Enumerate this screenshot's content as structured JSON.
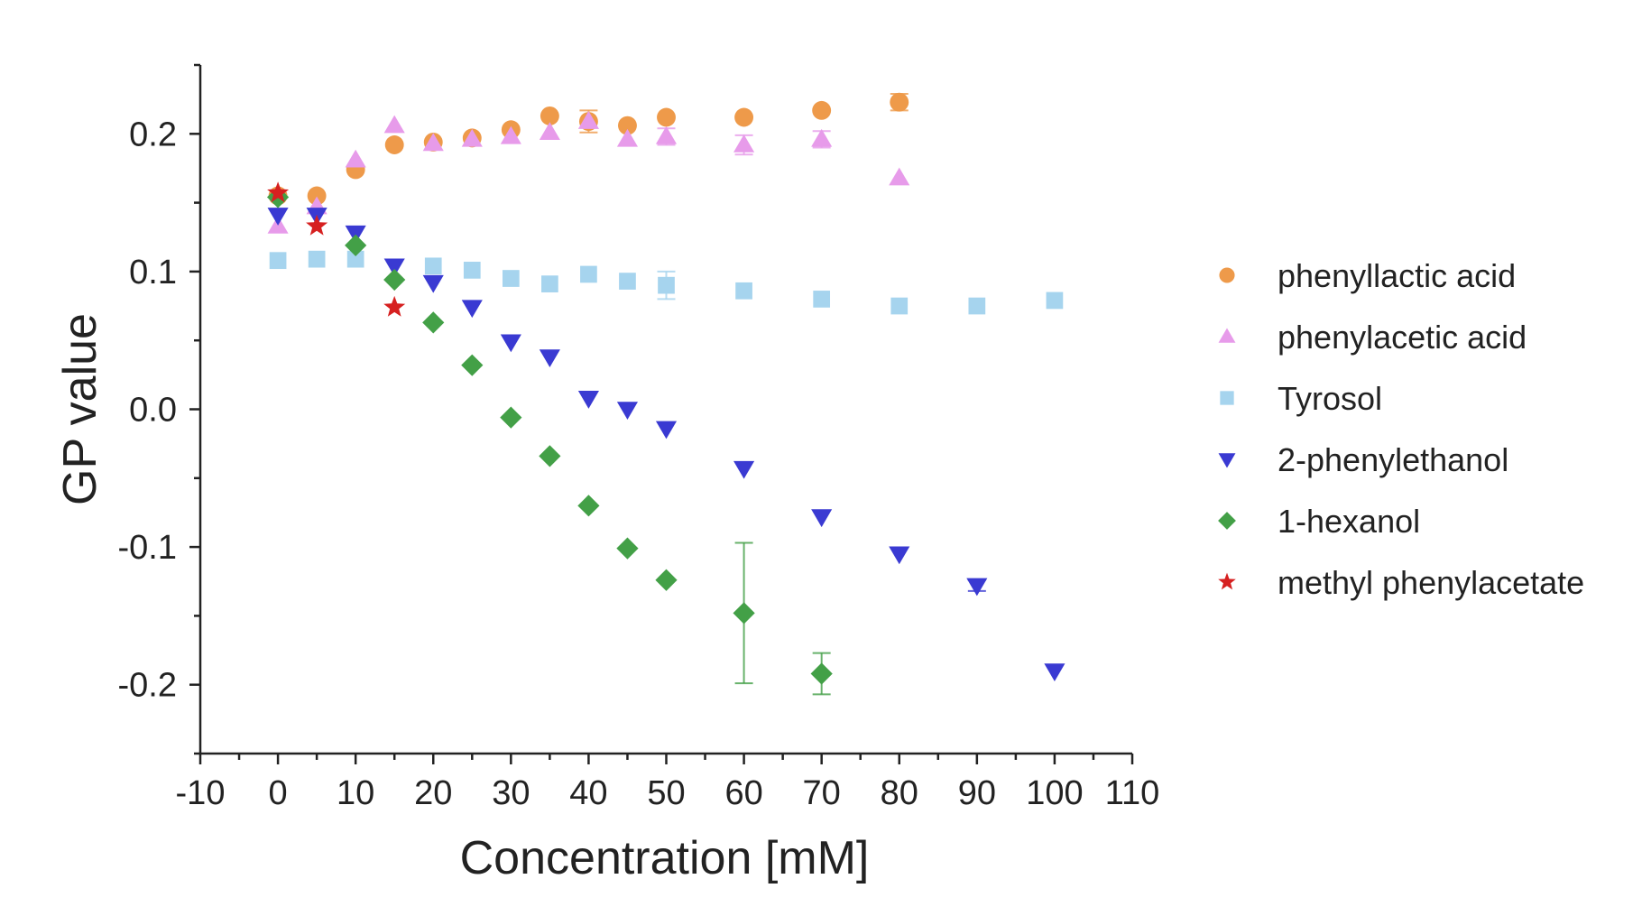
{
  "chart_data": {
    "type": "scatter",
    "title": "",
    "xlabel": "Concentration [mM]",
    "ylabel": "GP value",
    "xlim": [
      -10,
      110
    ],
    "ylim": [
      -0.25,
      0.25
    ],
    "xticks": [
      -10,
      0,
      10,
      20,
      30,
      40,
      50,
      60,
      70,
      80,
      90,
      100,
      110
    ],
    "xtick_labels": [
      "-10",
      "0",
      "10",
      "20",
      "30",
      "40",
      "50",
      "60",
      "70",
      "80",
      "90",
      "100",
      "110"
    ],
    "yticks": [
      -0.2,
      -0.1,
      0.0,
      0.1,
      0.2
    ],
    "ytick_labels": [
      "-0.2",
      "-0.1",
      "0.0",
      "0.1",
      "0.2"
    ],
    "grid": false,
    "legend_position": "right",
    "series": [
      {
        "name": "phenyllactic acid",
        "marker": "circle",
        "color": "#EE9A4A",
        "x": [
          0,
          5,
          10,
          15,
          20,
          25,
          30,
          35,
          40,
          45,
          50,
          60,
          70,
          80
        ],
        "y": [
          0.155,
          0.155,
          0.174,
          0.192,
          0.194,
          0.197,
          0.203,
          0.213,
          0.209,
          0.206,
          0.212,
          0.212,
          0.217,
          0.223
        ],
        "err": [
          0,
          0,
          0,
          0,
          0,
          0,
          0,
          0,
          0.008,
          0,
          0,
          0,
          0,
          0.006
        ]
      },
      {
        "name": "phenylacetic acid",
        "marker": "triangle-up",
        "color": "#E79BEA",
        "x": [
          0,
          5,
          10,
          15,
          20,
          25,
          30,
          35,
          40,
          45,
          50,
          60,
          70,
          80
        ],
        "y": [
          0.133,
          0.147,
          0.181,
          0.206,
          0.193,
          0.196,
          0.198,
          0.201,
          0.209,
          0.196,
          0.198,
          0.192,
          0.196,
          0.168
        ],
        "err": [
          0,
          0,
          0,
          0,
          0,
          0,
          0,
          0,
          0,
          0,
          0.006,
          0.007,
          0.006,
          0
        ]
      },
      {
        "name": "Tyrosol",
        "marker": "square",
        "color": "#A6D4EE",
        "x": [
          0,
          5,
          10,
          20,
          25,
          30,
          35,
          40,
          45,
          50,
          60,
          70,
          80,
          90,
          100
        ],
        "y": [
          0.108,
          0.109,
          0.109,
          0.104,
          0.101,
          0.095,
          0.091,
          0.098,
          0.093,
          0.09,
          0.086,
          0.08,
          0.075,
          0.075,
          0.079
        ],
        "err": [
          0,
          0,
          0,
          0,
          0,
          0,
          0,
          0,
          0,
          0.01,
          0,
          0,
          0,
          0,
          0
        ]
      },
      {
        "name": "2-phenylethanol",
        "marker": "triangle-down",
        "color": "#3A3AD2",
        "x": [
          0,
          5,
          10,
          15,
          20,
          25,
          30,
          35,
          40,
          45,
          50,
          60,
          70,
          80,
          90,
          100
        ],
        "y": [
          0.141,
          0.141,
          0.128,
          0.104,
          0.092,
          0.074,
          0.049,
          0.038,
          0.008,
          0.0,
          -0.014,
          -0.043,
          -0.078,
          -0.105,
          -0.128,
          -0.19
        ],
        "err": [
          0,
          0,
          0,
          0,
          0,
          0,
          0,
          0,
          0,
          0,
          0,
          0,
          0,
          0,
          0.004,
          0
        ]
      },
      {
        "name": "1-hexanol",
        "marker": "diamond",
        "color": "#43A047",
        "x": [
          0,
          10,
          15,
          20,
          25,
          30,
          35,
          40,
          45,
          50,
          60,
          70
        ],
        "y": [
          0.154,
          0.119,
          0.094,
          0.063,
          0.032,
          -0.006,
          -0.034,
          -0.07,
          -0.101,
          -0.124,
          -0.148,
          -0.192
        ],
        "err": [
          0,
          0,
          0,
          0,
          0,
          0,
          0,
          0,
          0,
          0,
          0.051,
          0.015
        ]
      },
      {
        "name": "methyl phenylacetate",
        "marker": "star",
        "color": "#D62020",
        "x": [
          0,
          5,
          15
        ],
        "y": [
          0.157,
          0.133,
          0.074
        ],
        "err": [
          0,
          0,
          0
        ]
      }
    ]
  }
}
